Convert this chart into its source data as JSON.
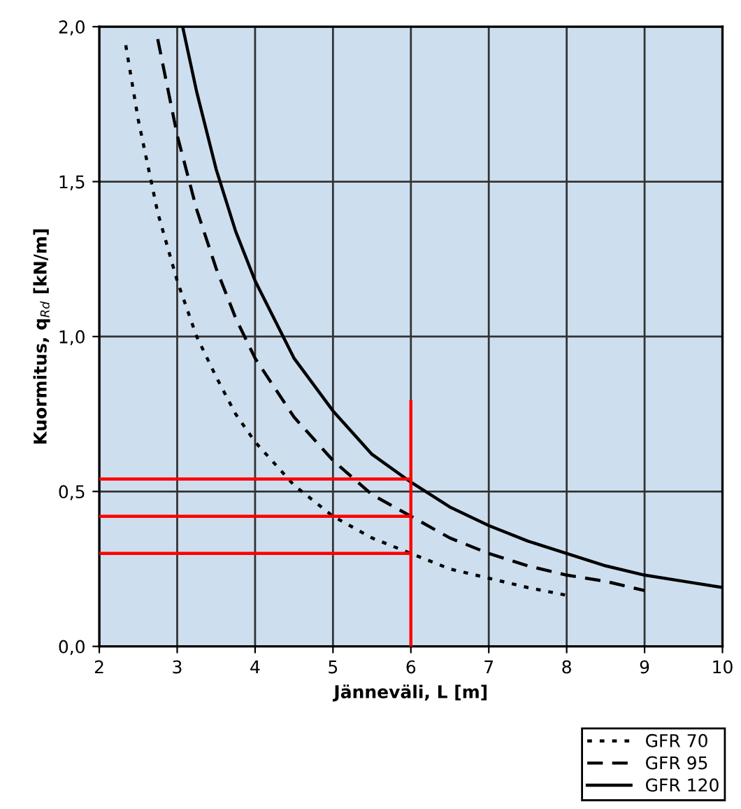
{
  "chart_data": {
    "type": "line",
    "xlabel": "Jänneväli, L [m]",
    "ylabel": "Kuormitus, q$_{Rd}$ [kN/m]",
    "xlim": [
      2,
      10
    ],
    "ylim": [
      0,
      2.0
    ],
    "xticks": [
      2,
      3,
      4,
      5,
      6,
      7,
      8,
      9,
      10
    ],
    "yticks": [
      {
        "value": 0,
        "label": "0,0"
      },
      {
        "value": 0.5,
        "label": "0,5"
      },
      {
        "value": 1.0,
        "label": "1,0"
      },
      {
        "value": 1.5,
        "label": "1,5"
      },
      {
        "value": 2.0,
        "label": "2,0"
      }
    ],
    "grid": true,
    "legend": "bottom right",
    "marker": "none",
    "series": [
      {
        "name": "GFR 70",
        "color": "#000000",
        "line_style": "dotted",
        "x": [
          2.34,
          2.5,
          2.75,
          3,
          3.25,
          3.5,
          3.75,
          4,
          4.5,
          5,
          5.5,
          6,
          6.5,
          7,
          7.5,
          8
        ],
        "values": [
          1.94,
          1.7,
          1.4,
          1.18,
          1.0,
          0.87,
          0.75,
          0.66,
          0.52,
          0.42,
          0.35,
          0.3,
          0.25,
          0.22,
          0.19,
          0.165
        ]
      },
      {
        "name": "GFR 95",
        "color": "#000000",
        "line_style": "dashed",
        "x": [
          2.75,
          3,
          3.25,
          3.5,
          3.75,
          4,
          4.5,
          5,
          5.5,
          6,
          6.5,
          7,
          7.5,
          8,
          8.5,
          9
        ],
        "values": [
          1.96,
          1.65,
          1.41,
          1.22,
          1.06,
          0.93,
          0.74,
          0.6,
          0.49,
          0.42,
          0.35,
          0.3,
          0.26,
          0.23,
          0.21,
          0.18
        ]
      },
      {
        "name": "GFR 120",
        "color": "#000000",
        "line_style": "solid",
        "x": [
          3.07,
          3.25,
          3.5,
          3.75,
          4,
          4.5,
          5,
          5.5,
          6,
          6.5,
          7,
          7.5,
          8,
          8.5,
          9,
          9.5,
          10
        ],
        "values": [
          2.0,
          1.79,
          1.54,
          1.34,
          1.18,
          0.93,
          0.76,
          0.62,
          0.53,
          0.45,
          0.39,
          0.34,
          0.3,
          0.26,
          0.23,
          0.21,
          0.19
        ]
      },
      {
        "color": "#ff0000",
        "line_style": "solid",
        "x": [
          6,
          6
        ],
        "values": [
          0,
          0.79
        ]
      },
      {
        "color": "#ff0000",
        "line_style": "solid",
        "x": [
          2,
          6
        ],
        "values": [
          0.54,
          0.54
        ]
      },
      {
        "color": "#ff0000",
        "line_style": "solid",
        "x": [
          2,
          6
        ],
        "values": [
          0.42,
          0.42
        ]
      },
      {
        "color": "#ff0000",
        "line_style": "solid",
        "x": [
          2,
          6
        ],
        "values": [
          0.3,
          0.3
        ]
      }
    ]
  }
}
